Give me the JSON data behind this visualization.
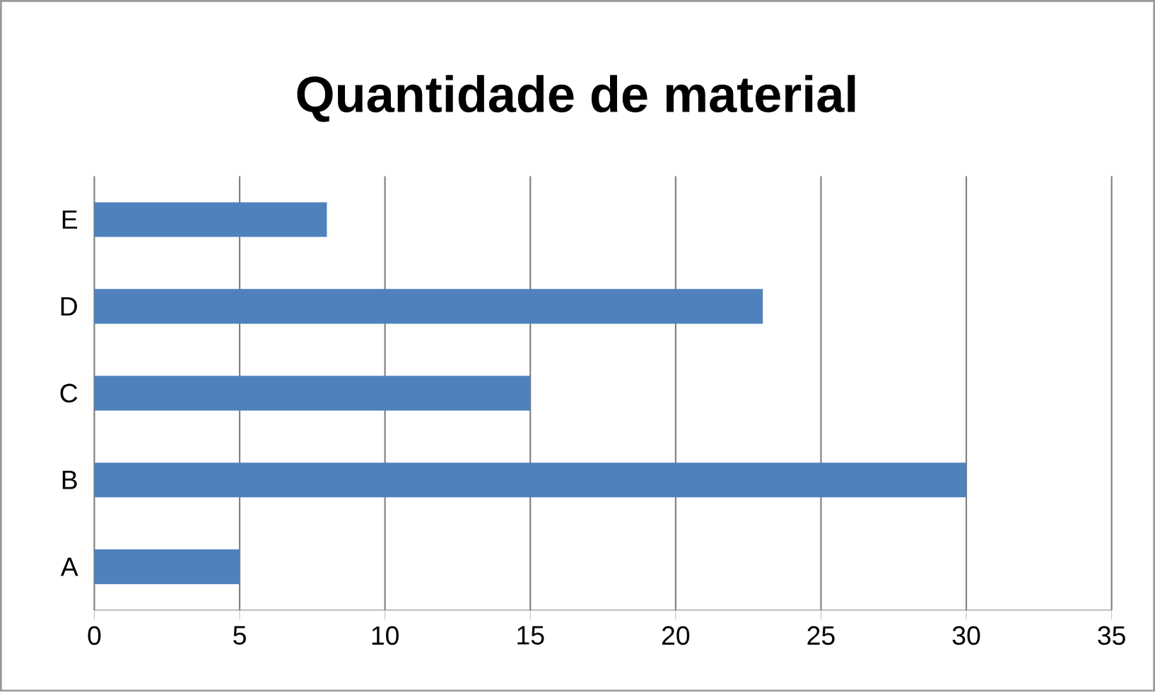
{
  "chart_data": {
    "type": "bar",
    "orientation": "horizontal",
    "title": "Quantidade de material",
    "categories": [
      "E",
      "D",
      "C",
      "B",
      "A"
    ],
    "values": [
      8,
      23,
      15,
      30,
      5
    ],
    "color": "#4f81bd",
    "xlim": [
      0,
      35
    ],
    "xticks": [
      0,
      5,
      10,
      15,
      20,
      25,
      30,
      35
    ],
    "grid": "x"
  }
}
